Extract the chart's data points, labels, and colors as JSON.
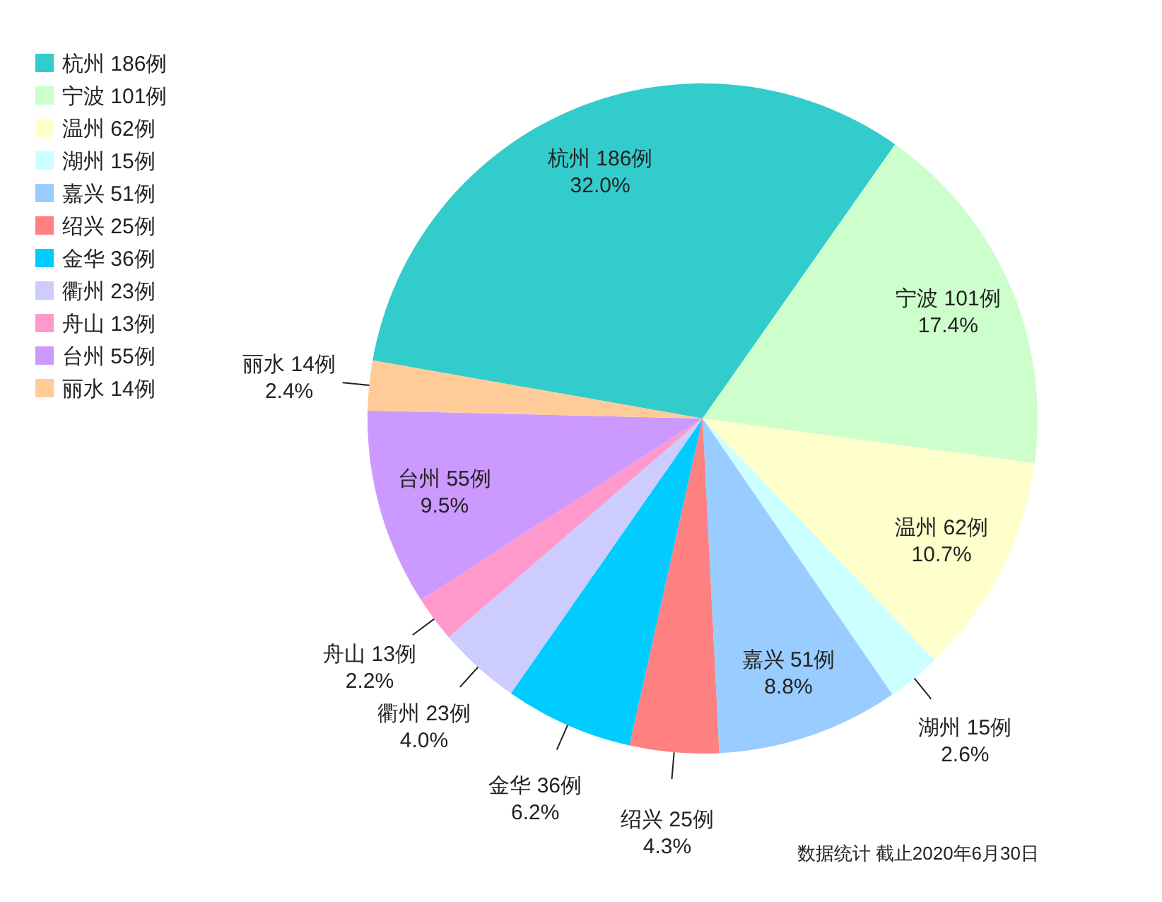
{
  "chart_data": {
    "type": "pie",
    "categories": [
      "杭州 186例",
      "宁波 101例",
      "温州 62例",
      "湖州 15例",
      "嘉兴 51例",
      "绍兴 25例",
      "金华 36例",
      "衢州 23例",
      "舟山 13例",
      "台州 55例",
      "丽水 14例"
    ],
    "values": [
      32.0,
      17.4,
      10.7,
      2.6,
      8.8,
      4.3,
      6.2,
      4.0,
      2.2,
      9.5,
      2.4
    ],
    "colors": [
      "#33cccc",
      "#ccffcc",
      "#ffffcc",
      "#ccffff",
      "#99ccff",
      "#ff8080",
      "#00ccff",
      "#ccccff",
      "#ff99cc",
      "#cc99ff",
      "#ffcc99"
    ],
    "value_labels": [
      "32.0%",
      "17.4%",
      "10.7%",
      "2.6%",
      "8.8%",
      "4.3%",
      "6.2%",
      "4.0%",
      "2.2%",
      "9.5%",
      "2.4%"
    ],
    "legend": "top left",
    "annotations": [
      "数据统计  截止2020年6月30日"
    ]
  }
}
